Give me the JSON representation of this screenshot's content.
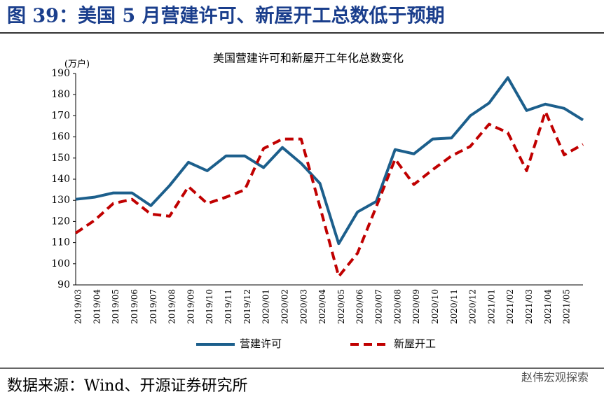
{
  "header": {
    "title": "图 39：美国 5 月营建许可、新屋开工总数低于预期"
  },
  "chart_data": {
    "type": "line",
    "title": "美国营建许可和新屋开工年化总数变化",
    "y_label": "(万户)",
    "categories": [
      "2019/03",
      "2019/04",
      "2019/05",
      "2019/06",
      "2019/07",
      "2019/08",
      "2019/09",
      "2019/10",
      "2019/11",
      "2019/12",
      "2020/01",
      "2020/02",
      "2020/03",
      "2020/04",
      "2020/05",
      "2020/06",
      "2020/07",
      "2020/08",
      "2020/09",
      "2020/10",
      "2020/11",
      "2020/12",
      "2021/01",
      "2021/02",
      "2021/03",
      "2021/04",
      "2021/05",
      null
    ],
    "series": [
      {
        "name": "营建许可",
        "color": "#1c5f8c",
        "dash": false,
        "values": [
          130.5,
          131.5,
          133.5,
          133.5,
          127.5,
          137,
          148,
          144,
          151,
          151,
          145.5,
          155,
          147.5,
          138,
          109.5,
          124.5,
          129.5,
          154,
          152,
          159,
          159.5,
          170,
          176,
          188,
          172.5,
          175.5,
          173.5,
          168
        ]
      },
      {
        "name": "新屋开工",
        "color": "#c00000",
        "dash": true,
        "values": [
          114.5,
          120.5,
          128.5,
          130.5,
          123.5,
          122.5,
          136.5,
          128.5,
          131.5,
          135,
          154.5,
          159,
          159,
          127,
          94,
          105,
          127,
          149.5,
          137.5,
          144.5,
          151,
          155.5,
          166,
          162,
          144,
          172,
          151.5,
          156.5
        ]
      }
    ],
    "ylim": [
      90,
      190
    ],
    "yticks": [
      90,
      100,
      110,
      120,
      130,
      140,
      150,
      160,
      170,
      180,
      190
    ],
    "legend": "bottom"
  },
  "footer": {
    "source": "数据来源：Wind、开源证券研究所",
    "watermark": "赵伟宏观探索"
  }
}
